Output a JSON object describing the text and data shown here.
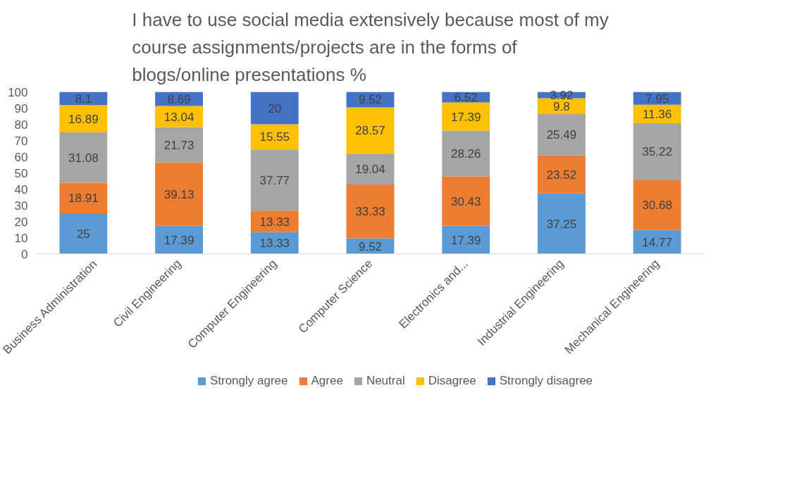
{
  "chart_data": {
    "type": "bar",
    "stacked": true,
    "title": "I have to use social media extensively because most of my course assignments/projects are in the forms of blogs/online presentations %",
    "categories": [
      "Business Administration",
      "Civil Engineering",
      "Computer Engineering",
      "Computer Science",
      "Electronics and...",
      "Industrial Engineering",
      "Mechanical Engineering"
    ],
    "series": [
      {
        "name": "Strongly agree",
        "color": "#5b9bd5",
        "values": [
          25,
          17.39,
          13.33,
          9.52,
          17.39,
          37.25,
          14.77
        ]
      },
      {
        "name": "Agree",
        "color": "#ed7d31",
        "values": [
          18.91,
          39.13,
          13.33,
          33.33,
          30.43,
          23.52,
          30.68
        ]
      },
      {
        "name": "Neutral",
        "color": "#a5a5a5",
        "values": [
          31.08,
          21.73,
          37.77,
          19.04,
          28.26,
          25.49,
          35.22
        ]
      },
      {
        "name": "Disagree",
        "color": "#ffc000",
        "values": [
          16.89,
          13.04,
          15.55,
          28.57,
          17.39,
          9.8,
          11.36
        ]
      },
      {
        "name": "Strongly disagree",
        "color": "#4472c4",
        "values": [
          8.1,
          8.69,
          20,
          9.52,
          6.52,
          3.92,
          7.95
        ]
      }
    ],
    "ylim": [
      0,
      100
    ],
    "yticks": [
      0,
      10,
      20,
      30,
      40,
      50,
      60,
      70,
      80,
      90,
      100
    ],
    "grid": false,
    "legend": "bottom",
    "data_labels": true
  }
}
